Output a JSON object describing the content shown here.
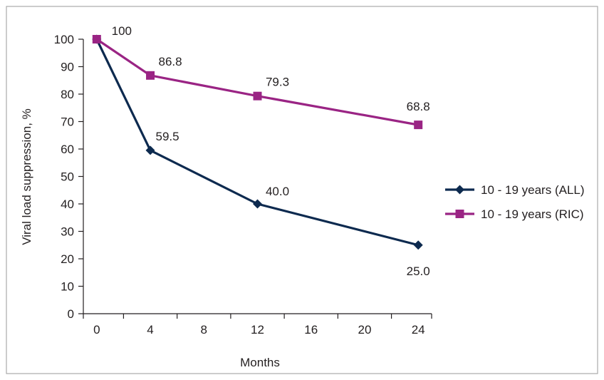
{
  "chart_data": {
    "type": "line",
    "title": "",
    "xlabel": "Months",
    "ylabel": "Viral load suppression, %",
    "x_ticks": [
      "0",
      "4",
      "8",
      "12",
      "16",
      "20",
      "24"
    ],
    "y_ticks": [
      "0",
      "10",
      "20",
      "30",
      "40",
      "50",
      "60",
      "70",
      "80",
      "90",
      "100"
    ],
    "xlim": [
      -1,
      25
    ],
    "ylim": [
      0,
      100
    ],
    "grid": false,
    "legend_position": "right",
    "series": [
      {
        "name": "10 - 19 years (ALL)",
        "color": "#0d2a4f",
        "marker": "diamond",
        "x": [
          0,
          4,
          12,
          24
        ],
        "y": [
          100,
          59.5,
          40.0,
          25.0
        ],
        "labels": [
          "",
          "59.5",
          "40.0",
          "25.0"
        ]
      },
      {
        "name": "10 - 19 years (RIC)",
        "color": "#9a2484",
        "marker": "square",
        "x": [
          0,
          4,
          12,
          24
        ],
        "y": [
          100,
          86.8,
          79.3,
          68.8
        ],
        "labels": [
          "100",
          "86.8",
          "79.3",
          "68.8"
        ]
      }
    ]
  }
}
